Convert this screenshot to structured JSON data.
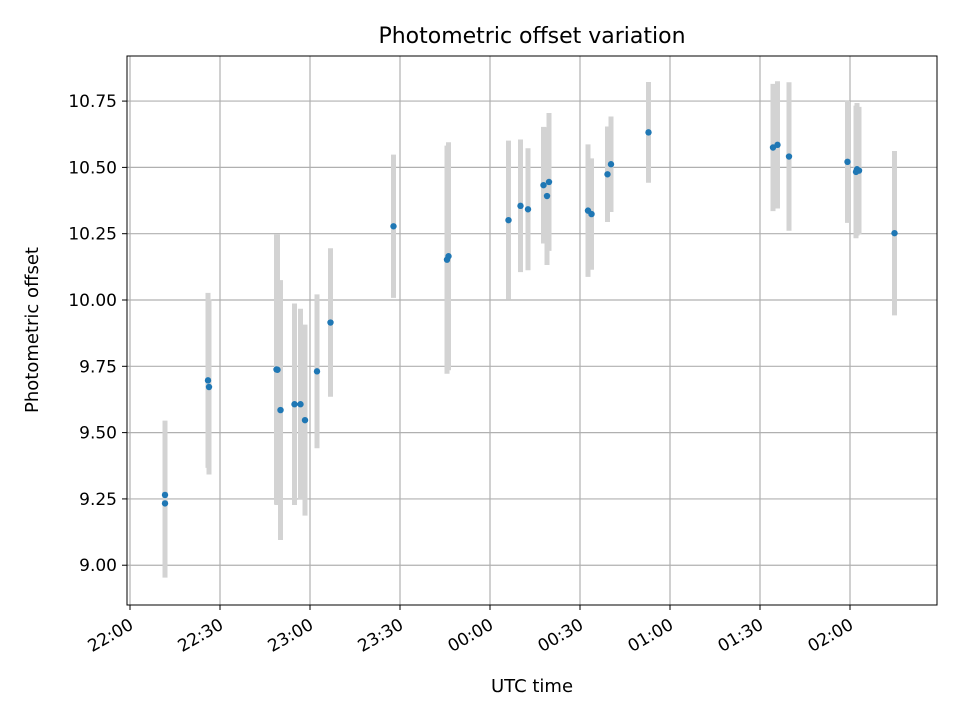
{
  "chart_data": {
    "type": "scatter",
    "title": "Photometric offset variation",
    "xlabel": "UTC time",
    "ylabel": "Photometric offset",
    "x_is_time": true,
    "xlim": [
      "21:59",
      "02:29"
    ],
    "ylim": [
      8.85,
      10.92
    ],
    "xticks": [
      "22:00",
      "22:30",
      "23:00",
      "23:30",
      "00:00",
      "00:30",
      "01:00",
      "01:30",
      "02:00"
    ],
    "yticks": [
      "9.00",
      "9.25",
      "9.50",
      "9.75",
      "10.00",
      "10.25",
      "10.50",
      "10.75"
    ],
    "grid": true,
    "colors": {
      "points": "#1f77b4",
      "errorbars": "#d3d3d3",
      "grid": "#b0b0b0"
    },
    "points": [
      {
        "t": "22:11:40",
        "y": 9.265,
        "err": 0.28
      },
      {
        "t": "22:11:40",
        "y": 9.233,
        "err": 0.28
      },
      {
        "t": "22:26:00",
        "y": 9.697,
        "err": 0.33
      },
      {
        "t": "22:26:20",
        "y": 9.672,
        "err": 0.33
      },
      {
        "t": "22:48:50",
        "y": 9.738,
        "err": 0.51
      },
      {
        "t": "22:49:10",
        "y": 9.737,
        "err": 0.51
      },
      {
        "t": "22:50:10",
        "y": 9.585,
        "err": 0.49
      },
      {
        "t": "22:54:50",
        "y": 9.607,
        "err": 0.38
      },
      {
        "t": "22:56:50",
        "y": 9.607,
        "err": 0.36
      },
      {
        "t": "22:58:20",
        "y": 9.547,
        "err": 0.36
      },
      {
        "t": "23:02:20",
        "y": 9.731,
        "err": 0.29
      },
      {
        "t": "23:06:50",
        "y": 9.915,
        "err": 0.28
      },
      {
        "t": "23:27:50",
        "y": 10.278,
        "err": 0.27
      },
      {
        "t": "23:45:40",
        "y": 10.152,
        "err": 0.43
      },
      {
        "t": "23:46:10",
        "y": 10.165,
        "err": 0.43
      },
      {
        "t": "00:06:10",
        "y": 10.301,
        "err": 0.3
      },
      {
        "t": "00:10:10",
        "y": 10.355,
        "err": 0.25
      },
      {
        "t": "00:12:40",
        "y": 10.342,
        "err": 0.23
      },
      {
        "t": "00:17:50",
        "y": 10.433,
        "err": 0.22
      },
      {
        "t": "00:19:00",
        "y": 10.392,
        "err": 0.26
      },
      {
        "t": "00:19:40",
        "y": 10.445,
        "err": 0.26
      },
      {
        "t": "00:32:40",
        "y": 10.337,
        "err": 0.25
      },
      {
        "t": "00:33:50",
        "y": 10.324,
        "err": 0.21
      },
      {
        "t": "00:39:10",
        "y": 10.474,
        "err": 0.18
      },
      {
        "t": "00:40:20",
        "y": 10.512,
        "err": 0.18
      },
      {
        "t": "00:52:50",
        "y": 10.632,
        "err": 0.19
      },
      {
        "t": "01:34:20",
        "y": 10.575,
        "err": 0.24
      },
      {
        "t": "01:35:50",
        "y": 10.585,
        "err": 0.24
      },
      {
        "t": "01:39:40",
        "y": 10.541,
        "err": 0.28
      },
      {
        "t": "01:59:10",
        "y": 10.521,
        "err": 0.23
      },
      {
        "t": "02:02:00",
        "y": 10.483,
        "err": 0.25
      },
      {
        "t": "02:02:20",
        "y": 10.493,
        "err": 0.25
      },
      {
        "t": "02:03:00",
        "y": 10.488,
        "err": 0.24
      },
      {
        "t": "02:14:50",
        "y": 10.252,
        "err": 0.31
      }
    ]
  }
}
